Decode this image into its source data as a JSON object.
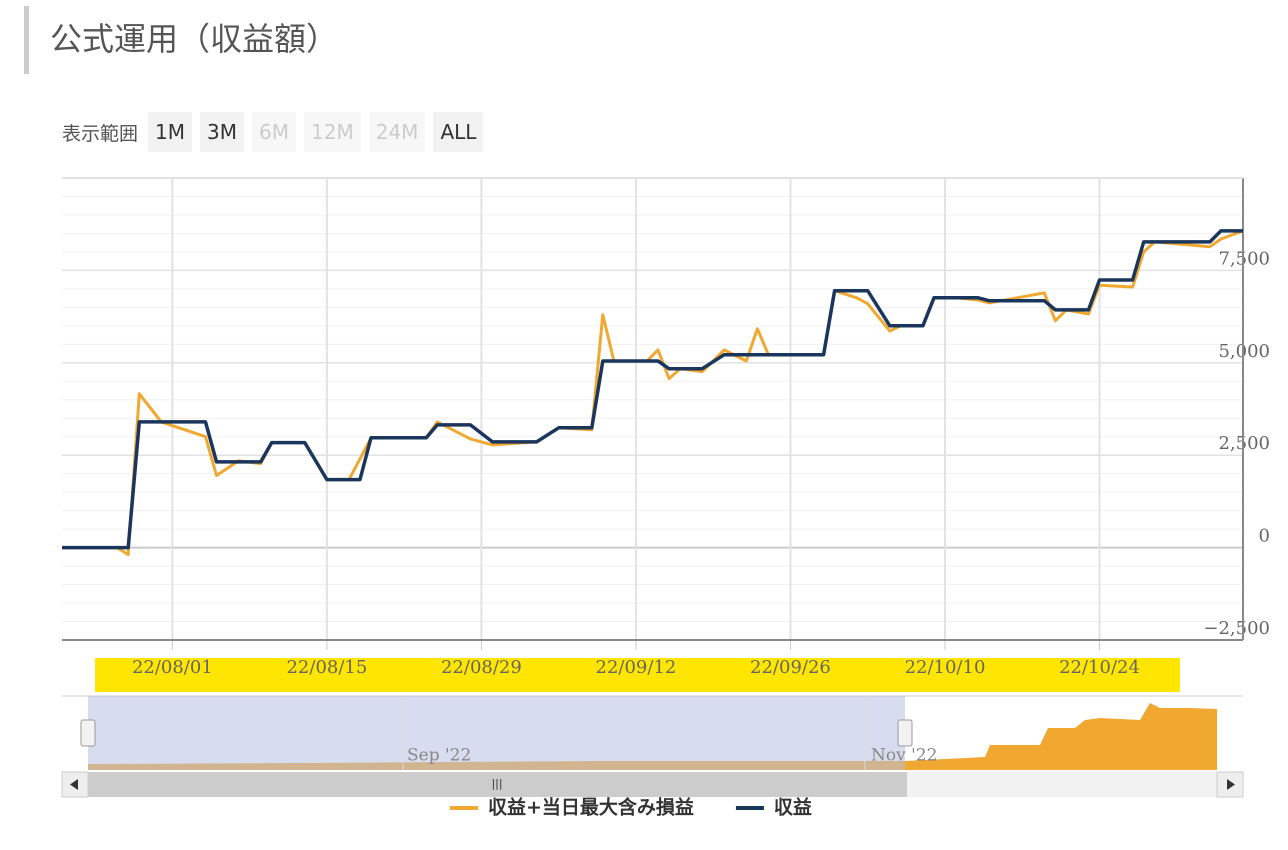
{
  "header": {
    "title": "公式運用（収益額）"
  },
  "range_selector": {
    "label": "表示範囲",
    "buttons": [
      {
        "label": "1M",
        "enabled": true
      },
      {
        "label": "3M",
        "enabled": true
      },
      {
        "label": "6M",
        "enabled": false
      },
      {
        "label": "12M",
        "enabled": false
      },
      {
        "label": "24M",
        "enabled": false
      },
      {
        "label": "ALL",
        "enabled": true
      }
    ]
  },
  "chart_data": {
    "type": "line",
    "x": [
      "2022-07-22",
      "2022-07-27",
      "2022-07-28",
      "2022-07-29",
      "2022-07-31",
      "2022-08-04",
      "2022-08-05",
      "2022-08-07",
      "2022-08-09",
      "2022-08-10",
      "2022-08-13",
      "2022-08-15",
      "2022-08-17",
      "2022-08-18",
      "2022-08-19",
      "2022-08-24",
      "2022-08-25",
      "2022-08-28",
      "2022-08-30",
      "2022-09-03",
      "2022-09-05",
      "2022-09-08",
      "2022-09-09",
      "2022-09-10",
      "2022-09-13",
      "2022-09-14",
      "2022-09-15",
      "2022-09-16",
      "2022-09-18",
      "2022-09-20",
      "2022-09-22",
      "2022-09-23",
      "2022-09-24",
      "2022-09-29",
      "2022-09-30",
      "2022-10-02",
      "2022-10-03",
      "2022-10-05",
      "2022-10-06",
      "2022-10-08",
      "2022-10-09",
      "2022-10-11",
      "2022-10-13",
      "2022-10-14",
      "2022-10-19",
      "2022-10-20",
      "2022-10-21",
      "2022-10-23",
      "2022-10-24",
      "2022-10-27",
      "2022-10-28",
      "2022-10-29",
      "2022-11-03",
      "2022-11-04",
      "2022-11-06"
    ],
    "series": [
      {
        "name": "収益+当日最大含み損益",
        "color": "#f0a830",
        "values": [
          0,
          0,
          -190,
          4160,
          3400,
          3000,
          1950,
          2350,
          2270,
          2840,
          2840,
          1840,
          1840,
          2400,
          2970,
          2970,
          3400,
          2940,
          2780,
          2860,
          3240,
          3190,
          6300,
          5050,
          5050,
          5350,
          4570,
          4840,
          4760,
          5350,
          5050,
          5920,
          5220,
          5220,
          6950,
          6760,
          6600,
          5860,
          6000,
          6000,
          6760,
          6760,
          6700,
          6620,
          6890,
          6140,
          6430,
          6320,
          7100,
          7050,
          8000,
          8270,
          8140,
          8350,
          8570
        ]
      },
      {
        "name": "収益",
        "color": "#1b365d",
        "values": [
          0,
          0,
          0,
          3400,
          3400,
          3400,
          2320,
          2320,
          2320,
          2840,
          2840,
          1840,
          1840,
          1840,
          2970,
          2970,
          3320,
          3320,
          2860,
          2860,
          3240,
          3240,
          5050,
          5050,
          5050,
          5050,
          4840,
          4840,
          4840,
          5220,
          5220,
          5220,
          5220,
          5220,
          6950,
          6950,
          6950,
          6000,
          6000,
          6000,
          6760,
          6760,
          6760,
          6680,
          6680,
          6430,
          6430,
          6430,
          7240,
          7240,
          8270,
          8270,
          8270,
          8570,
          8570
        ]
      }
    ],
    "xlim": [
      "2022-07-22",
      "2022-11-06"
    ],
    "xticks": [
      {
        "value": "2022-08-01",
        "label": "22/08/01"
      },
      {
        "value": "2022-08-15",
        "label": "22/08/15"
      },
      {
        "value": "2022-08-29",
        "label": "22/08/29"
      },
      {
        "value": "2022-09-12",
        "label": "22/09/12"
      },
      {
        "value": "2022-09-26",
        "label": "22/09/26"
      },
      {
        "value": "2022-10-10",
        "label": "22/10/10"
      },
      {
        "value": "2022-10-24",
        "label": "22/10/24"
      }
    ],
    "ylim": [
      -2500,
      10000
    ],
    "yticks": [
      {
        "value": -2500,
        "label": "−2,500"
      },
      0,
      {
        "value": 2500,
        "label": "2,500"
      },
      {
        "value": 5000,
        "label": "5,000"
      },
      {
        "value": 7500,
        "label": "7,500"
      }
    ],
    "minor_tick_interval": 500,
    "grid": true
  },
  "navigator": {
    "labels": [
      "Sep '22",
      "Nov '22"
    ]
  }
}
